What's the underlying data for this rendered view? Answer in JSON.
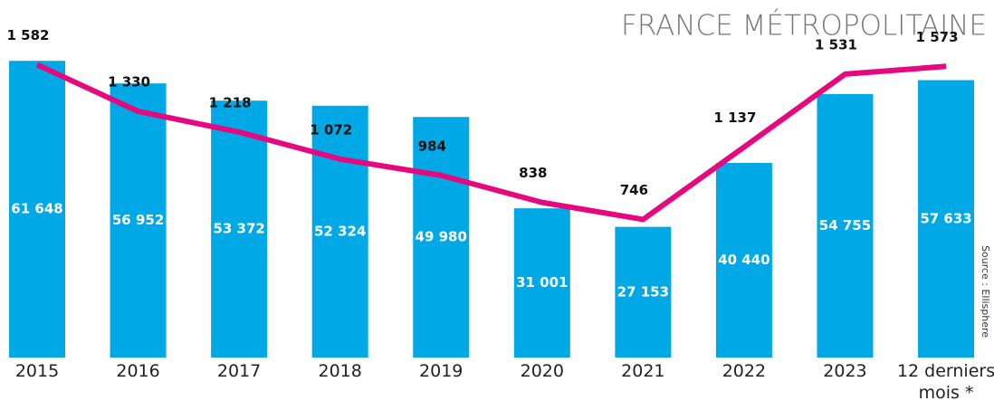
{
  "chart_data": {
    "type": "bar",
    "title": "FRANCE MÉTROPOLITAINE",
    "source": "Source : Ellisphere",
    "categories": [
      "2015",
      "2016",
      "2017",
      "2018",
      "2019",
      "2020",
      "2021",
      "2022",
      "2023",
      "12 derniers mois *"
    ],
    "series": [
      {
        "type": "bar",
        "color": "#00a9e6",
        "values": [
          61648,
          56952,
          53372,
          52324,
          49980,
          31001,
          27153,
          40440,
          54755,
          57633
        ],
        "value_labels": [
          "61 648",
          "56 952",
          "53 372",
          "52 324",
          "49 980",
          "31 001",
          "27 153",
          "40 440",
          "54 755",
          "57 633"
        ]
      },
      {
        "type": "line",
        "axis": "y2",
        "color": "#e5087e",
        "values": [
          1582,
          1330,
          1218,
          1072,
          984,
          838,
          746,
          1137,
          1531,
          1573
        ],
        "value_labels": [
          "1 582",
          "1 330",
          "1 218",
          "1 072",
          "984",
          "838",
          "746",
          "1 137",
          "1 531",
          "1 573"
        ]
      }
    ],
    "ylim": [
      0,
      63000
    ],
    "y2lim": [
      0,
      1638
    ]
  }
}
